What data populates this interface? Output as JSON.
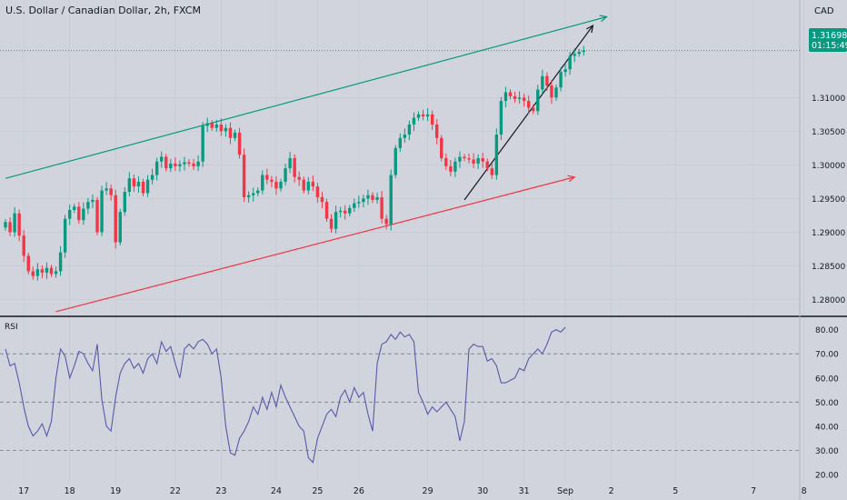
{
  "header": {
    "title": "U.S. Dollar / Canadian Dollar, 2h, FXCM",
    "currency": "CAD"
  },
  "price_badge": {
    "price": "1.31698",
    "countdown": "01:15:49",
    "color": "#089981"
  },
  "rsi_panel": {
    "label": "RSI"
  },
  "colors": {
    "background": "#d1d4dc",
    "up_candle": "#089981",
    "down_candle": "#f23645",
    "upper_channel": "#089981",
    "lower_channel": "#f23645",
    "arrow": "#131722",
    "rsi_line": "#5b57a8",
    "grid": "#c3c7cf"
  },
  "chart_data": [
    {
      "type": "candlestick",
      "title": "U.S. Dollar / Canadian Dollar, 2h, FXCM",
      "ylabel": "CAD",
      "ylim": [
        1.2775,
        1.3245
      ],
      "y_ticks": [
        "1.31000",
        "1.30500",
        "1.30000",
        "1.29500",
        "1.29000",
        "1.28500",
        "1.28000"
      ],
      "y_tick_values": [
        1.31,
        1.305,
        1.3,
        1.295,
        1.29,
        1.285,
        1.28
      ],
      "x_ticks": [
        "17",
        "18",
        "19",
        "22",
        "23",
        "24",
        "25",
        "26",
        "29",
        "30",
        "31",
        "Sep",
        "2",
        "5",
        "7",
        "8"
      ],
      "x_tick_bars": [
        4,
        14,
        24,
        37,
        47,
        59,
        68,
        77,
        92,
        104,
        113,
        122,
        132,
        146,
        163,
        174
      ],
      "last_price": 1.31698,
      "closes": [
        1.2915,
        1.29,
        1.2928,
        1.2895,
        1.2865,
        1.2842,
        1.2835,
        1.2845,
        1.284,
        1.2847,
        1.2838,
        1.2842,
        1.287,
        1.292,
        1.2933,
        1.2938,
        1.2918,
        1.2935,
        1.2945,
        1.2948,
        1.29,
        1.2962,
        1.2965,
        1.2955,
        1.2885,
        1.293,
        1.296,
        1.298,
        1.2968,
        1.2975,
        1.2958,
        1.2978,
        1.2985,
        1.3005,
        1.3012,
        1.2995,
        1.3002,
        1.2998,
        1.3001,
        1.3004,
        1.3002,
        1.2998,
        1.3005,
        1.3058,
        1.3062,
        1.3055,
        1.306,
        1.305,
        1.3055,
        1.304,
        1.3048,
        1.3015,
        1.2952,
        1.2955,
        1.2958,
        1.2962,
        1.2985,
        1.2978,
        1.2975,
        1.2965,
        1.2975,
        1.2995,
        1.301,
        1.2982,
        1.2978,
        1.2962,
        1.2975,
        1.2968,
        1.2952,
        1.2945,
        1.292,
        1.2905,
        1.293,
        1.2932,
        1.2928,
        1.2936,
        1.2943,
        1.2945,
        1.295,
        1.2955,
        1.2948,
        1.2952,
        1.292,
        1.2912,
        1.2985,
        1.3025,
        1.304,
        1.3045,
        1.306,
        1.307,
        1.3075,
        1.3072,
        1.3075,
        1.306,
        1.304,
        1.301,
        1.2998,
        1.299,
        1.3005,
        1.3012,
        1.301,
        1.3008,
        1.3002,
        1.301,
        1.3005,
        1.2995,
        1.2985,
        1.3045,
        1.3095,
        1.3108,
        1.3102,
        1.3098,
        1.31,
        1.3095,
        1.3085,
        1.308,
        1.3112,
        1.3132,
        1.3118,
        1.31,
        1.3115,
        1.3138,
        1.3142,
        1.3162,
        1.3165,
        1.3168,
        1.317
      ],
      "upper_channel": {
        "from": {
          "bar": 0,
          "value": 1.298
        },
        "to": {
          "bar": 131,
          "value": 1.322
        }
      },
      "lower_channel": {
        "from": {
          "bar": 11,
          "value": 1.2782
        },
        "to": {
          "bar": 124,
          "value": 1.2982
        }
      },
      "trend_arrow": {
        "from": {
          "bar": 100,
          "value": 1.2948
        },
        "to": {
          "bar": 128,
          "value": 1.3207
        }
      }
    },
    {
      "type": "line",
      "title": "RSI",
      "ylim": [
        17,
        84
      ],
      "y_ticks": [
        "80.00",
        "70.00",
        "60.00",
        "50.00",
        "40.00",
        "30.00",
        "20.00"
      ],
      "y_tick_values": [
        80,
        70,
        60,
        50,
        40,
        30,
        20
      ],
      "reference_lines": [
        70,
        50,
        30
      ],
      "values": [
        72,
        65,
        66,
        58,
        48,
        40,
        36,
        38,
        41,
        36,
        42,
        60,
        72,
        69,
        60,
        65,
        71,
        70,
        66,
        63,
        74,
        51,
        40,
        38,
        52,
        62,
        66,
        68,
        64,
        66,
        62,
        68,
        70,
        66,
        75,
        71,
        73,
        66,
        60,
        72,
        74,
        72,
        75,
        76,
        74,
        70,
        72,
        60,
        40,
        29,
        28,
        35,
        38,
        42,
        48,
        45,
        52,
        47,
        54,
        48,
        57,
        52,
        48,
        44,
        40,
        38,
        27,
        25,
        35,
        40,
        45,
        47,
        44,
        52,
        55,
        50,
        56,
        52,
        54,
        45,
        38,
        66,
        74,
        75,
        78,
        76,
        79,
        77,
        78,
        75,
        54,
        50,
        45,
        48,
        46,
        48,
        50,
        47,
        44,
        34,
        42,
        72,
        74,
        73,
        73,
        67,
        68,
        65,
        58,
        58,
        59,
        60,
        64,
        63,
        68,
        70,
        72,
        70,
        74,
        79,
        80,
        79,
        81
      ]
    }
  ]
}
